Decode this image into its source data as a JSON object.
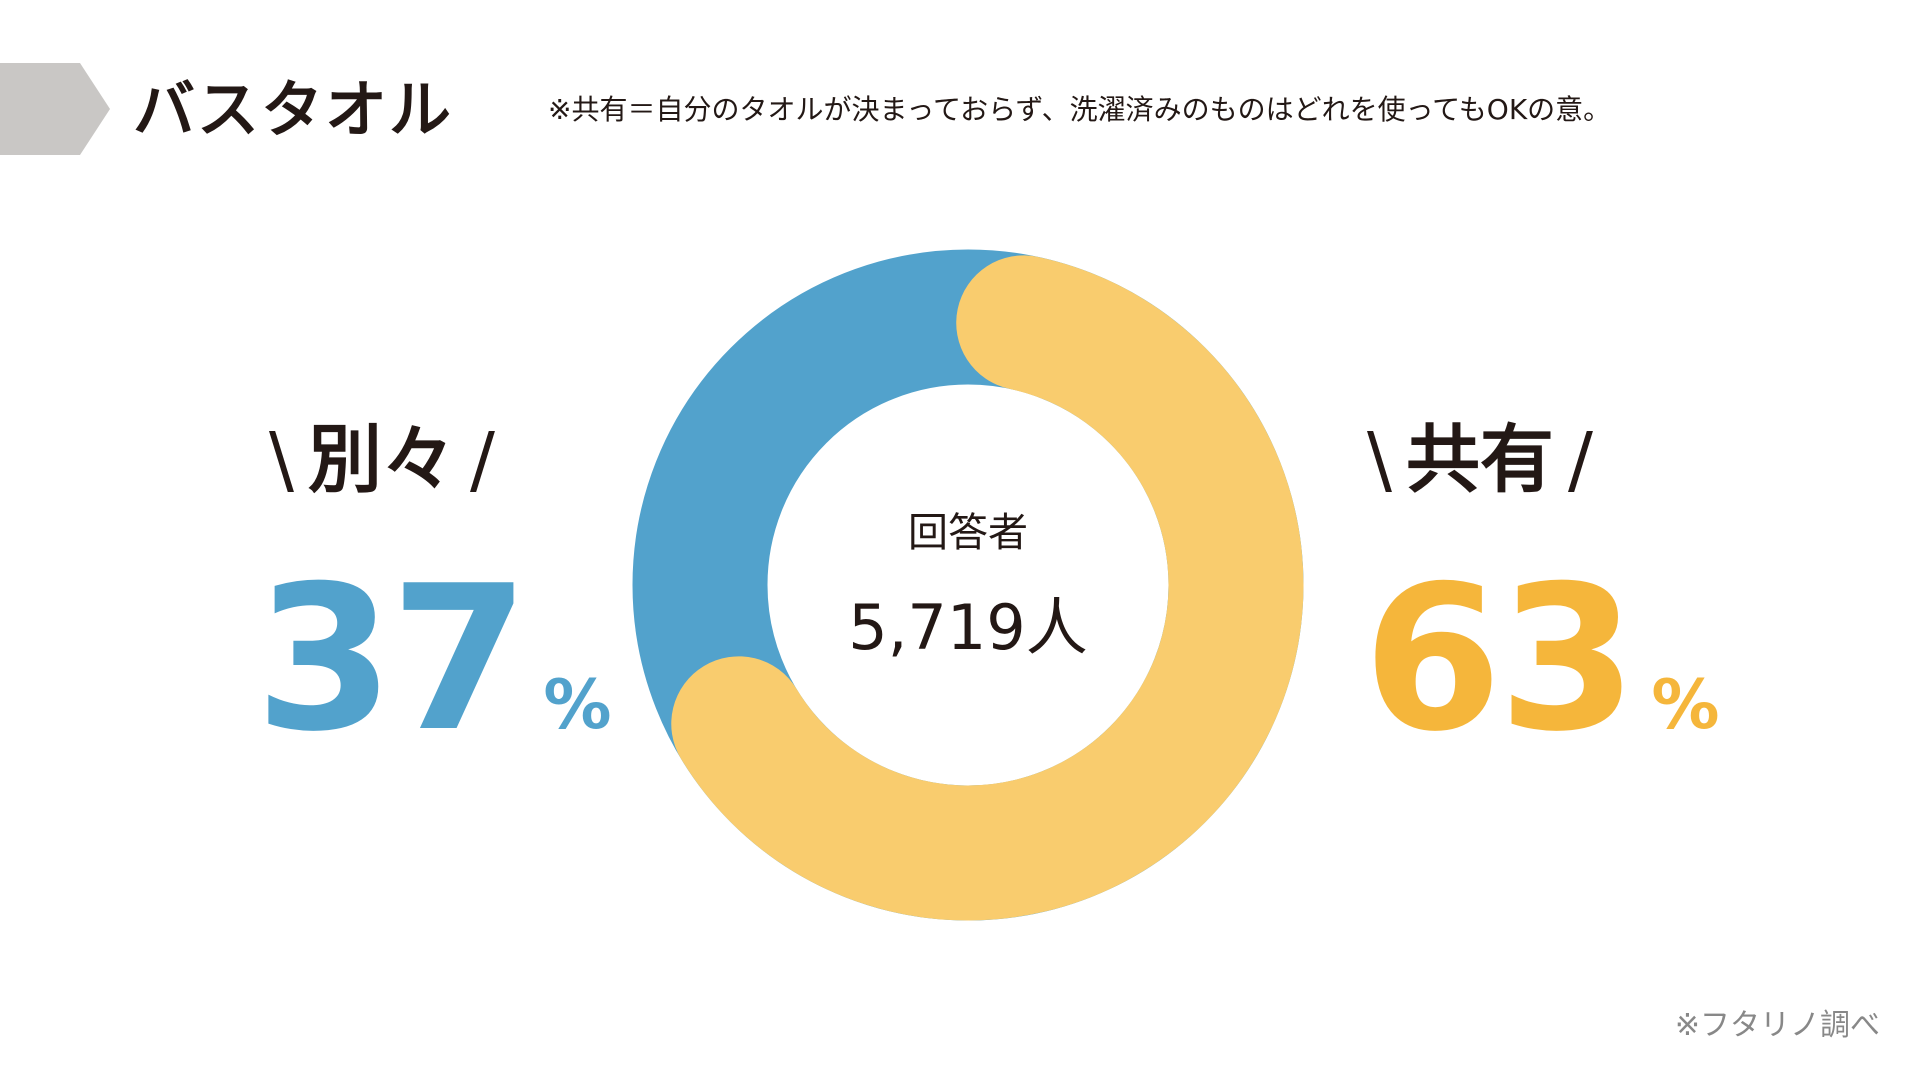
{
  "header": {
    "title": "バスタオル",
    "note": "※共有＝自分のタオルが決まっておらず、洗濯済みのものはどれを使ってもOKの意。"
  },
  "chart_data": {
    "type": "pie",
    "title": "バスタオル",
    "variant": "donut",
    "slices": [
      {
        "label": "別々",
        "value": 37,
        "color": "#52a2cc"
      },
      {
        "label": "共有",
        "value": 63,
        "color": "#f9cc6e"
      }
    ],
    "center_label": "回答者",
    "center_value": "5,719人",
    "unit": "%"
  },
  "labels": {
    "left": {
      "category": "別々",
      "value": "37",
      "unit": "%",
      "color": "#52a2cc"
    },
    "right": {
      "category": "共有",
      "value": "63",
      "unit": "%",
      "color": "#f5b63b"
    },
    "slash_open": "\\",
    "slash_close": "/"
  },
  "center": {
    "caption": "回答者",
    "count": "5,719人"
  },
  "footer": {
    "source": "※フタリノ調べ"
  },
  "colors": {
    "header_arrow": "#c9c7c5",
    "text": "#231815",
    "source_text": "#888888"
  }
}
